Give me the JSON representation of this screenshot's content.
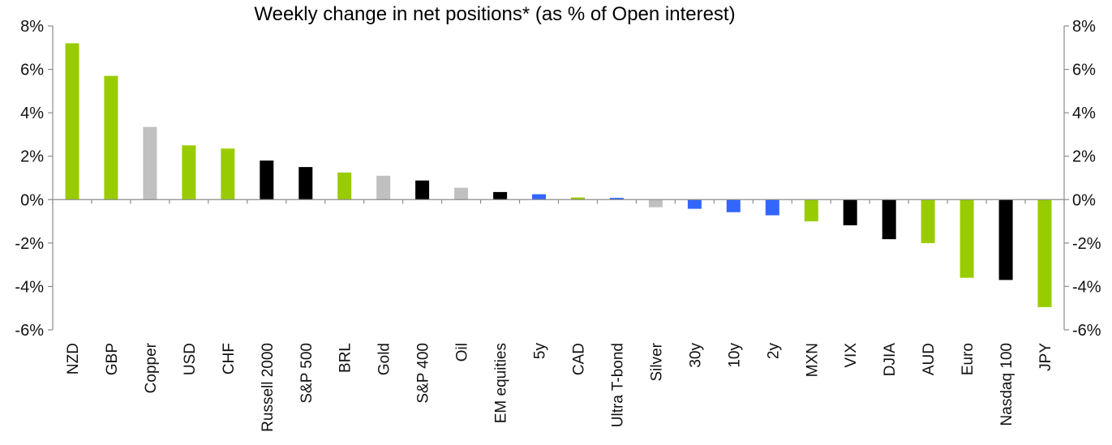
{
  "chart_data": {
    "type": "bar",
    "title": "Weekly change in net positions* (as % of Open interest)",
    "xlabel": "",
    "ylabel": "",
    "ylim": [
      -6,
      8
    ],
    "yticks": [
      8,
      6,
      4,
      2,
      0,
      -2,
      -4,
      -6
    ],
    "ytick_labels": [
      "8%",
      "6%",
      "4%",
      "2%",
      "0%",
      "-2%",
      "-4%",
      "-6%"
    ],
    "secondary_axis": true,
    "grid": false,
    "legend": "none",
    "categories": [
      "NZD",
      "GBP",
      "Copper",
      "USD",
      "CHF",
      "Russell 2000",
      "S&P 500",
      "BRL",
      "Gold",
      "S&P 400",
      "Oil",
      "EM equities",
      "5y",
      "CAD",
      "Ultra T-bond",
      "Silver",
      "30y",
      "10y",
      "2y",
      "MXN",
      "VIX",
      "DJIA",
      "AUD",
      "Euro",
      "Nasdaq 100",
      "JPY"
    ],
    "values": [
      7.2,
      5.7,
      3.35,
      2.5,
      2.35,
      1.8,
      1.5,
      1.25,
      1.1,
      0.88,
      0.55,
      0.35,
      0.25,
      0.1,
      0.08,
      -0.35,
      -0.42,
      -0.58,
      -0.72,
      -1.0,
      -1.18,
      -1.82,
      -2.0,
      -3.6,
      -3.7,
      -4.95
    ],
    "bar_colors": [
      "#99cc00",
      "#99cc00",
      "#c0c0c0",
      "#99cc00",
      "#99cc00",
      "#000000",
      "#000000",
      "#99cc00",
      "#c0c0c0",
      "#000000",
      "#c0c0c0",
      "#000000",
      "#3366ff",
      "#99cc00",
      "#3366ff",
      "#c0c0c0",
      "#3366ff",
      "#3366ff",
      "#3366ff",
      "#99cc00",
      "#000000",
      "#000000",
      "#99cc00",
      "#99cc00",
      "#000000",
      "#99cc00"
    ]
  },
  "colors": {
    "fx": "#99cc00",
    "commodities": "#c0c0c0",
    "equities": "#000000",
    "rates": "#3366ff"
  },
  "footnote": ""
}
